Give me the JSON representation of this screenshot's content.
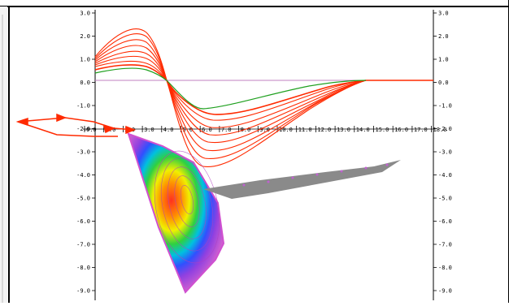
{
  "window": {
    "frame_color": "#000000"
  },
  "plot": {
    "left_axis_ticks": [
      "3.0",
      "2.0",
      "1.0",
      "0.0",
      "-1.0",
      "-2.0",
      "-3.0",
      "-4.0",
      "-5.0",
      "-6.0",
      "-7.0",
      "-8.0",
      "-9.0"
    ],
    "right_axis_ticks": [
      "3.0",
      "2.0",
      "1.0",
      "0.0",
      "-1.0",
      "-2.0",
      "-3.0",
      "-4.0",
      "-5.0",
      "-6.0",
      "-7.0",
      "-8.0",
      "-9.0"
    ],
    "x_axis_ticks": [
      "0.0",
      "1.0",
      "2.0",
      "3.0",
      "4.0",
      "5.0",
      "6.0",
      "7.0",
      "8.0",
      "9.0",
      "10.0",
      "11.0",
      "12.0",
      "13.0",
      "14.0",
      "15.0",
      "16.0",
      "17.0",
      "18.0"
    ],
    "colors": {
      "curves": "#ff2a00",
      "reference_curve": "#1fa01f",
      "baseline": "#c080c0",
      "surface_outline": "#d050d0",
      "shadow_surface": "#8a8a8a"
    }
  }
}
